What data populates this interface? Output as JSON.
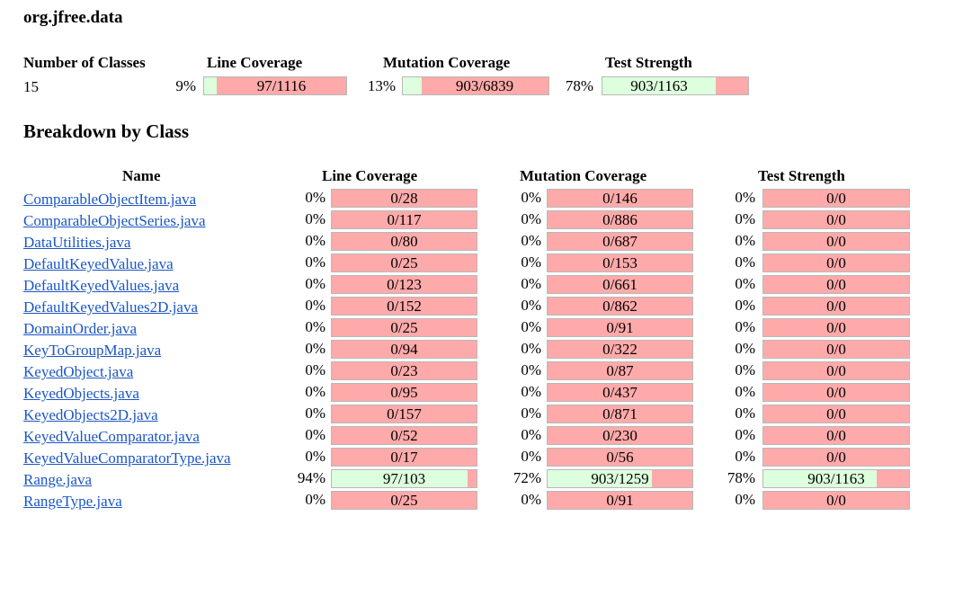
{
  "package_title": "org.jfree.data",
  "summary": {
    "headers": {
      "classes": "Number of Classes",
      "line": "Line Coverage",
      "mutation": "Mutation Coverage",
      "strength": "Test Strength"
    },
    "num_classes": "15",
    "line": {
      "pct": "9%",
      "text": "97/1116",
      "fraction": 0.09
    },
    "mutation": {
      "pct": "13%",
      "text": "903/6839",
      "fraction": 0.13
    },
    "strength": {
      "pct": "78%",
      "text": "903/1163",
      "fraction": 0.78
    }
  },
  "breakdown": {
    "title": "Breakdown by Class",
    "headers": {
      "name": "Name",
      "line": "Line Coverage",
      "mutation": "Mutation Coverage",
      "strength": "Test Strength"
    },
    "rows": [
      {
        "name": "ComparableObjectItem.java",
        "line_pct": "0%",
        "line_text": "0/28",
        "line_fraction": 0,
        "mut_pct": "0%",
        "mut_text": "0/146",
        "mut_fraction": 0,
        "str_pct": "0%",
        "str_text": "0/0",
        "str_fraction": 0
      },
      {
        "name": "ComparableObjectSeries.java",
        "line_pct": "0%",
        "line_text": "0/117",
        "line_fraction": 0,
        "mut_pct": "0%",
        "mut_text": "0/886",
        "mut_fraction": 0,
        "str_pct": "0%",
        "str_text": "0/0",
        "str_fraction": 0
      },
      {
        "name": "DataUtilities.java",
        "line_pct": "0%",
        "line_text": "0/80",
        "line_fraction": 0,
        "mut_pct": "0%",
        "mut_text": "0/687",
        "mut_fraction": 0,
        "str_pct": "0%",
        "str_text": "0/0",
        "str_fraction": 0
      },
      {
        "name": "DefaultKeyedValue.java",
        "line_pct": "0%",
        "line_text": "0/25",
        "line_fraction": 0,
        "mut_pct": "0%",
        "mut_text": "0/153",
        "mut_fraction": 0,
        "str_pct": "0%",
        "str_text": "0/0",
        "str_fraction": 0
      },
      {
        "name": "DefaultKeyedValues.java",
        "line_pct": "0%",
        "line_text": "0/123",
        "line_fraction": 0,
        "mut_pct": "0%",
        "mut_text": "0/661",
        "mut_fraction": 0,
        "str_pct": "0%",
        "str_text": "0/0",
        "str_fraction": 0
      },
      {
        "name": "DefaultKeyedValues2D.java",
        "line_pct": "0%",
        "line_text": "0/152",
        "line_fraction": 0,
        "mut_pct": "0%",
        "mut_text": "0/862",
        "mut_fraction": 0,
        "str_pct": "0%",
        "str_text": "0/0",
        "str_fraction": 0
      },
      {
        "name": "DomainOrder.java",
        "line_pct": "0%",
        "line_text": "0/25",
        "line_fraction": 0,
        "mut_pct": "0%",
        "mut_text": "0/91",
        "mut_fraction": 0,
        "str_pct": "0%",
        "str_text": "0/0",
        "str_fraction": 0
      },
      {
        "name": "KeyToGroupMap.java",
        "line_pct": "0%",
        "line_text": "0/94",
        "line_fraction": 0,
        "mut_pct": "0%",
        "mut_text": "0/322",
        "mut_fraction": 0,
        "str_pct": "0%",
        "str_text": "0/0",
        "str_fraction": 0
      },
      {
        "name": "KeyedObject.java",
        "line_pct": "0%",
        "line_text": "0/23",
        "line_fraction": 0,
        "mut_pct": "0%",
        "mut_text": "0/87",
        "mut_fraction": 0,
        "str_pct": "0%",
        "str_text": "0/0",
        "str_fraction": 0
      },
      {
        "name": "KeyedObjects.java",
        "line_pct": "0%",
        "line_text": "0/95",
        "line_fraction": 0,
        "mut_pct": "0%",
        "mut_text": "0/437",
        "mut_fraction": 0,
        "str_pct": "0%",
        "str_text": "0/0",
        "str_fraction": 0
      },
      {
        "name": "KeyedObjects2D.java",
        "line_pct": "0%",
        "line_text": "0/157",
        "line_fraction": 0,
        "mut_pct": "0%",
        "mut_text": "0/871",
        "mut_fraction": 0,
        "str_pct": "0%",
        "str_text": "0/0",
        "str_fraction": 0
      },
      {
        "name": "KeyedValueComparator.java",
        "line_pct": "0%",
        "line_text": "0/52",
        "line_fraction": 0,
        "mut_pct": "0%",
        "mut_text": "0/230",
        "mut_fraction": 0,
        "str_pct": "0%",
        "str_text": "0/0",
        "str_fraction": 0
      },
      {
        "name": "KeyedValueComparatorType.java",
        "line_pct": "0%",
        "line_text": "0/17",
        "line_fraction": 0,
        "mut_pct": "0%",
        "mut_text": "0/56",
        "mut_fraction": 0,
        "str_pct": "0%",
        "str_text": "0/0",
        "str_fraction": 0
      },
      {
        "name": "Range.java",
        "line_pct": "94%",
        "line_text": "97/103",
        "line_fraction": 0.94,
        "mut_pct": "72%",
        "mut_text": "903/1259",
        "mut_fraction": 0.72,
        "str_pct": "78%",
        "str_text": "903/1163",
        "str_fraction": 0.78
      },
      {
        "name": "RangeType.java",
        "line_pct": "0%",
        "line_text": "0/25",
        "line_fraction": 0,
        "mut_pct": "0%",
        "mut_text": "0/91",
        "mut_fraction": 0,
        "str_pct": "0%",
        "str_text": "0/0",
        "str_fraction": 0
      }
    ]
  },
  "colors": {
    "covered": "#ddffdd",
    "uncovered": "#ffaaaa",
    "link": "#1a56c4"
  }
}
